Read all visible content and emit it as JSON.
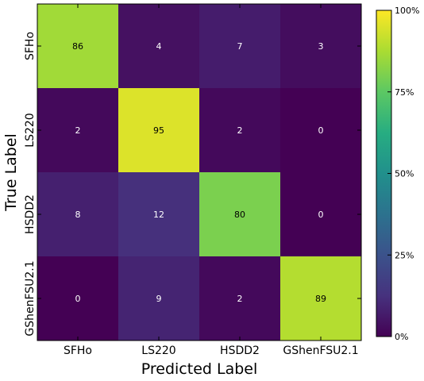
{
  "chart_data": {
    "type": "heatmap",
    "xlabel": "Predicted Label",
    "ylabel": "True Label",
    "x_categories": [
      "SFHo",
      "LS220",
      "HSDD2",
      "GShenFSU2.1"
    ],
    "y_categories": [
      "SFHo",
      "LS220",
      "HSDD2",
      "GShenFSU2.1"
    ],
    "values": [
      [
        86,
        4,
        7,
        3
      ],
      [
        2,
        95,
        2,
        0
      ],
      [
        8,
        12,
        80,
        0
      ],
      [
        0,
        9,
        2,
        89
      ]
    ],
    "colormap": "viridis",
    "vmin": 0,
    "vmax": 100,
    "colorbar_ticks": [
      {
        "value": 0,
        "label": "0%"
      },
      {
        "value": 25,
        "label": "25%"
      },
      {
        "value": 50,
        "label": "50%"
      },
      {
        "value": 75,
        "label": "75%"
      },
      {
        "value": 100,
        "label": "100%"
      }
    ],
    "grid": false,
    "legend": "colorbar-right"
  }
}
